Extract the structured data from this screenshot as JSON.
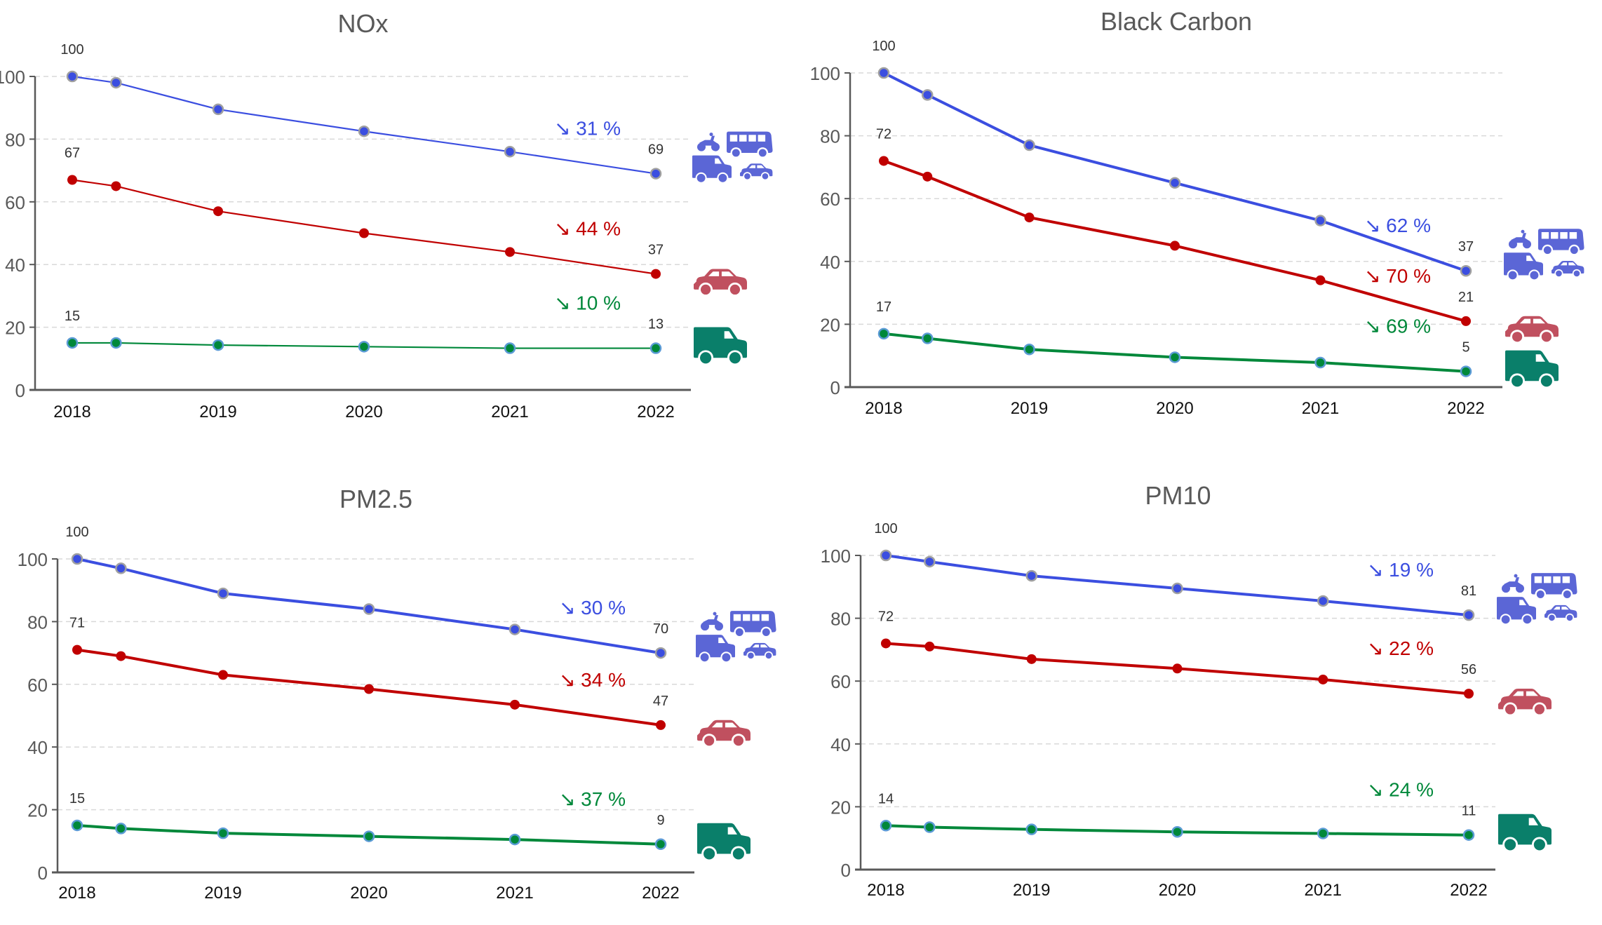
{
  "colors": {
    "all_vehicles": "#3b4ee0",
    "cars": "#c00000",
    "vans": "#00883a",
    "icon_all": "#5b66d6",
    "icon_car": "#c0505f",
    "icon_van": "#0a7f6a",
    "axis": "#595959",
    "grid": "#d9d9d9",
    "title": "#595959"
  },
  "chart_data": [
    {
      "type": "line",
      "title": "NOx",
      "x": [
        2018,
        2018.3,
        2019,
        2020,
        2021,
        2022
      ],
      "xticks": [
        "2018",
        "2019",
        "2020",
        "2021",
        "2022"
      ],
      "ylim": [
        0,
        100
      ],
      "yticks": [
        "0",
        "20",
        "40",
        "60",
        "80",
        "100"
      ],
      "grid": true,
      "series": [
        {
          "name": "All vehicles",
          "color_key": "all_vehicles",
          "icon": "mixed-vehicles-icon",
          "values": [
            100,
            98,
            89.5,
            82.5,
            76,
            69
          ],
          "start_label": "100",
          "end_label": "69",
          "change": "↘ 31 %"
        },
        {
          "name": "Cars",
          "color_key": "cars",
          "icon": "car-icon",
          "values": [
            67,
            65,
            57,
            50,
            44,
            37
          ],
          "start_label": "67",
          "end_label": "37",
          "change": "↘ 44 %"
        },
        {
          "name": "Vans",
          "color_key": "vans",
          "icon": "van-icon",
          "values": [
            15,
            15,
            14.3,
            13.8,
            13.3,
            13.3
          ],
          "start_label": "15",
          "end_label": "13",
          "change": "↘ 10 %"
        }
      ]
    },
    {
      "type": "line",
      "title": "Black Carbon",
      "x": [
        2018,
        2018.3,
        2019,
        2020,
        2021,
        2022
      ],
      "xticks": [
        "2018",
        "2019",
        "2020",
        "2021",
        "2022"
      ],
      "ylim": [
        0,
        100
      ],
      "yticks": [
        "0",
        "20",
        "40",
        "60",
        "80",
        "100"
      ],
      "grid": true,
      "series": [
        {
          "name": "All vehicles",
          "color_key": "all_vehicles",
          "icon": "mixed-vehicles-icon",
          "values": [
            100,
            93,
            77,
            65,
            53,
            37
          ],
          "start_label": "100",
          "end_label": "37",
          "change": "↘ 62 %"
        },
        {
          "name": "Cars",
          "color_key": "cars",
          "icon": "car-icon",
          "values": [
            72,
            67,
            54,
            45,
            34,
            21
          ],
          "start_label": "72",
          "end_label": "21",
          "change": "↘ 70 %"
        },
        {
          "name": "Vans",
          "color_key": "vans",
          "icon": "van-icon",
          "values": [
            17,
            15.5,
            12,
            9.5,
            7.8,
            5
          ],
          "start_label": "17",
          "end_label": "5",
          "change": "↘ 69 %"
        }
      ]
    },
    {
      "type": "line",
      "title": "PM2.5",
      "x": [
        2018,
        2018.3,
        2019,
        2020,
        2021,
        2022
      ],
      "xticks": [
        "2018",
        "2019",
        "2020",
        "2021",
        "2022"
      ],
      "ylim": [
        0,
        100
      ],
      "yticks": [
        "0",
        "20",
        "40",
        "60",
        "80",
        "100"
      ],
      "grid": true,
      "series": [
        {
          "name": "All vehicles",
          "color_key": "all_vehicles",
          "icon": "mixed-vehicles-icon",
          "values": [
            100,
            97,
            89,
            84,
            77.5,
            70
          ],
          "start_label": "100",
          "end_label": "70",
          "change": "↘ 30 %"
        },
        {
          "name": "Cars",
          "color_key": "cars",
          "icon": "car-icon",
          "values": [
            71,
            69,
            63,
            58.5,
            53.5,
            47
          ],
          "start_label": "71",
          "end_label": "47",
          "change": "↘ 34 %"
        },
        {
          "name": "Vans",
          "color_key": "vans",
          "icon": "van-icon",
          "values": [
            15,
            14,
            12.5,
            11.5,
            10.5,
            9
          ],
          "start_label": "15",
          "end_label": "9",
          "change": "↘ 37 %"
        }
      ]
    },
    {
      "type": "line",
      "title": "PM10",
      "x": [
        2018,
        2018.3,
        2019,
        2020,
        2021,
        2022
      ],
      "xticks": [
        "2018",
        "2019",
        "2020",
        "2021",
        "2022"
      ],
      "ylim": [
        0,
        100
      ],
      "yticks": [
        "0",
        "20",
        "40",
        "60",
        "80",
        "100"
      ],
      "grid": true,
      "series": [
        {
          "name": "All vehicles",
          "color_key": "all_vehicles",
          "icon": "mixed-vehicles-icon",
          "values": [
            100,
            98,
            93.5,
            89.5,
            85.5,
            81
          ],
          "start_label": "100",
          "end_label": "81",
          "change": "↘ 19 %"
        },
        {
          "name": "Cars",
          "color_key": "cars",
          "icon": "car-icon",
          "values": [
            72,
            71,
            67,
            64,
            60.5,
            56
          ],
          "start_label": "72",
          "end_label": "56",
          "change": "↘ 22 %"
        },
        {
          "name": "Vans",
          "color_key": "vans",
          "icon": "van-icon",
          "values": [
            14,
            13.5,
            12.8,
            12,
            11.5,
            11
          ],
          "start_label": "14",
          "end_label": "11",
          "change": "↘ 24 %"
        }
      ]
    }
  ]
}
